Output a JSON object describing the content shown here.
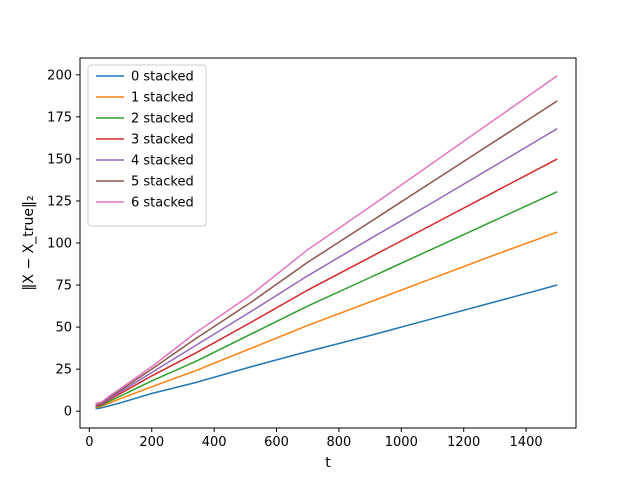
{
  "chart_data": {
    "type": "line",
    "xlabel": "t",
    "ylabel": "‖X − X_true‖₂",
    "xlim": [
      -30,
      1560
    ],
    "ylim": [
      -10,
      210
    ],
    "xticks": [
      0,
      200,
      400,
      600,
      800,
      1000,
      1200,
      1400
    ],
    "yticks": [
      0,
      25,
      50,
      75,
      100,
      125,
      150,
      175,
      200
    ],
    "grid": false,
    "legend_position": "upper-left",
    "x": [
      20,
      40,
      60,
      100,
      200,
      340,
      520,
      700,
      900,
      1100,
      1300,
      1500
    ],
    "series": [
      {
        "name": "0 stacked",
        "color": "#1f77b4",
        "values": [
          1.5,
          2.0,
          3.0,
          5.0,
          10.5,
          17.0,
          26.5,
          35.5,
          45.0,
          55.0,
          65.0,
          75.0
        ]
      },
      {
        "name": "1 stacked",
        "color": "#ff7f0e",
        "values": [
          2.0,
          3.0,
          4.5,
          7.5,
          14.5,
          24.0,
          37.5,
          51.0,
          65.0,
          79.0,
          93.0,
          106.5
        ]
      },
      {
        "name": "2 stacked",
        "color": "#2ca02c",
        "values": [
          2.5,
          3.5,
          5.5,
          9.0,
          18.0,
          29.5,
          46.0,
          62.5,
          79.5,
          96.5,
          113.5,
          130.5
        ]
      },
      {
        "name": "3 stacked",
        "color": "#d62728",
        "values": [
          3.0,
          4.0,
          6.5,
          10.5,
          21.0,
          34.5,
          53.0,
          72.0,
          91.5,
          111.0,
          130.5,
          150.0
        ]
      },
      {
        "name": "4 stacked",
        "color": "#9467bd",
        "values": [
          3.5,
          4.5,
          7.0,
          11.5,
          23.0,
          39.0,
          59.5,
          80.5,
          102.5,
          124.0,
          146.0,
          168.0
        ]
      },
      {
        "name": "5 stacked",
        "color": "#8c564b",
        "values": [
          4.0,
          5.0,
          8.0,
          12.5,
          25.0,
          43.0,
          65.0,
          88.5,
          112.5,
          136.5,
          160.5,
          184.5
        ]
      },
      {
        "name": "6 stacked",
        "color": "#e377c2",
        "values": [
          4.5,
          5.5,
          8.5,
          13.5,
          26.5,
          46.5,
          69.5,
          96.0,
          121.5,
          147.5,
          173.5,
          199.5
        ]
      }
    ]
  }
}
